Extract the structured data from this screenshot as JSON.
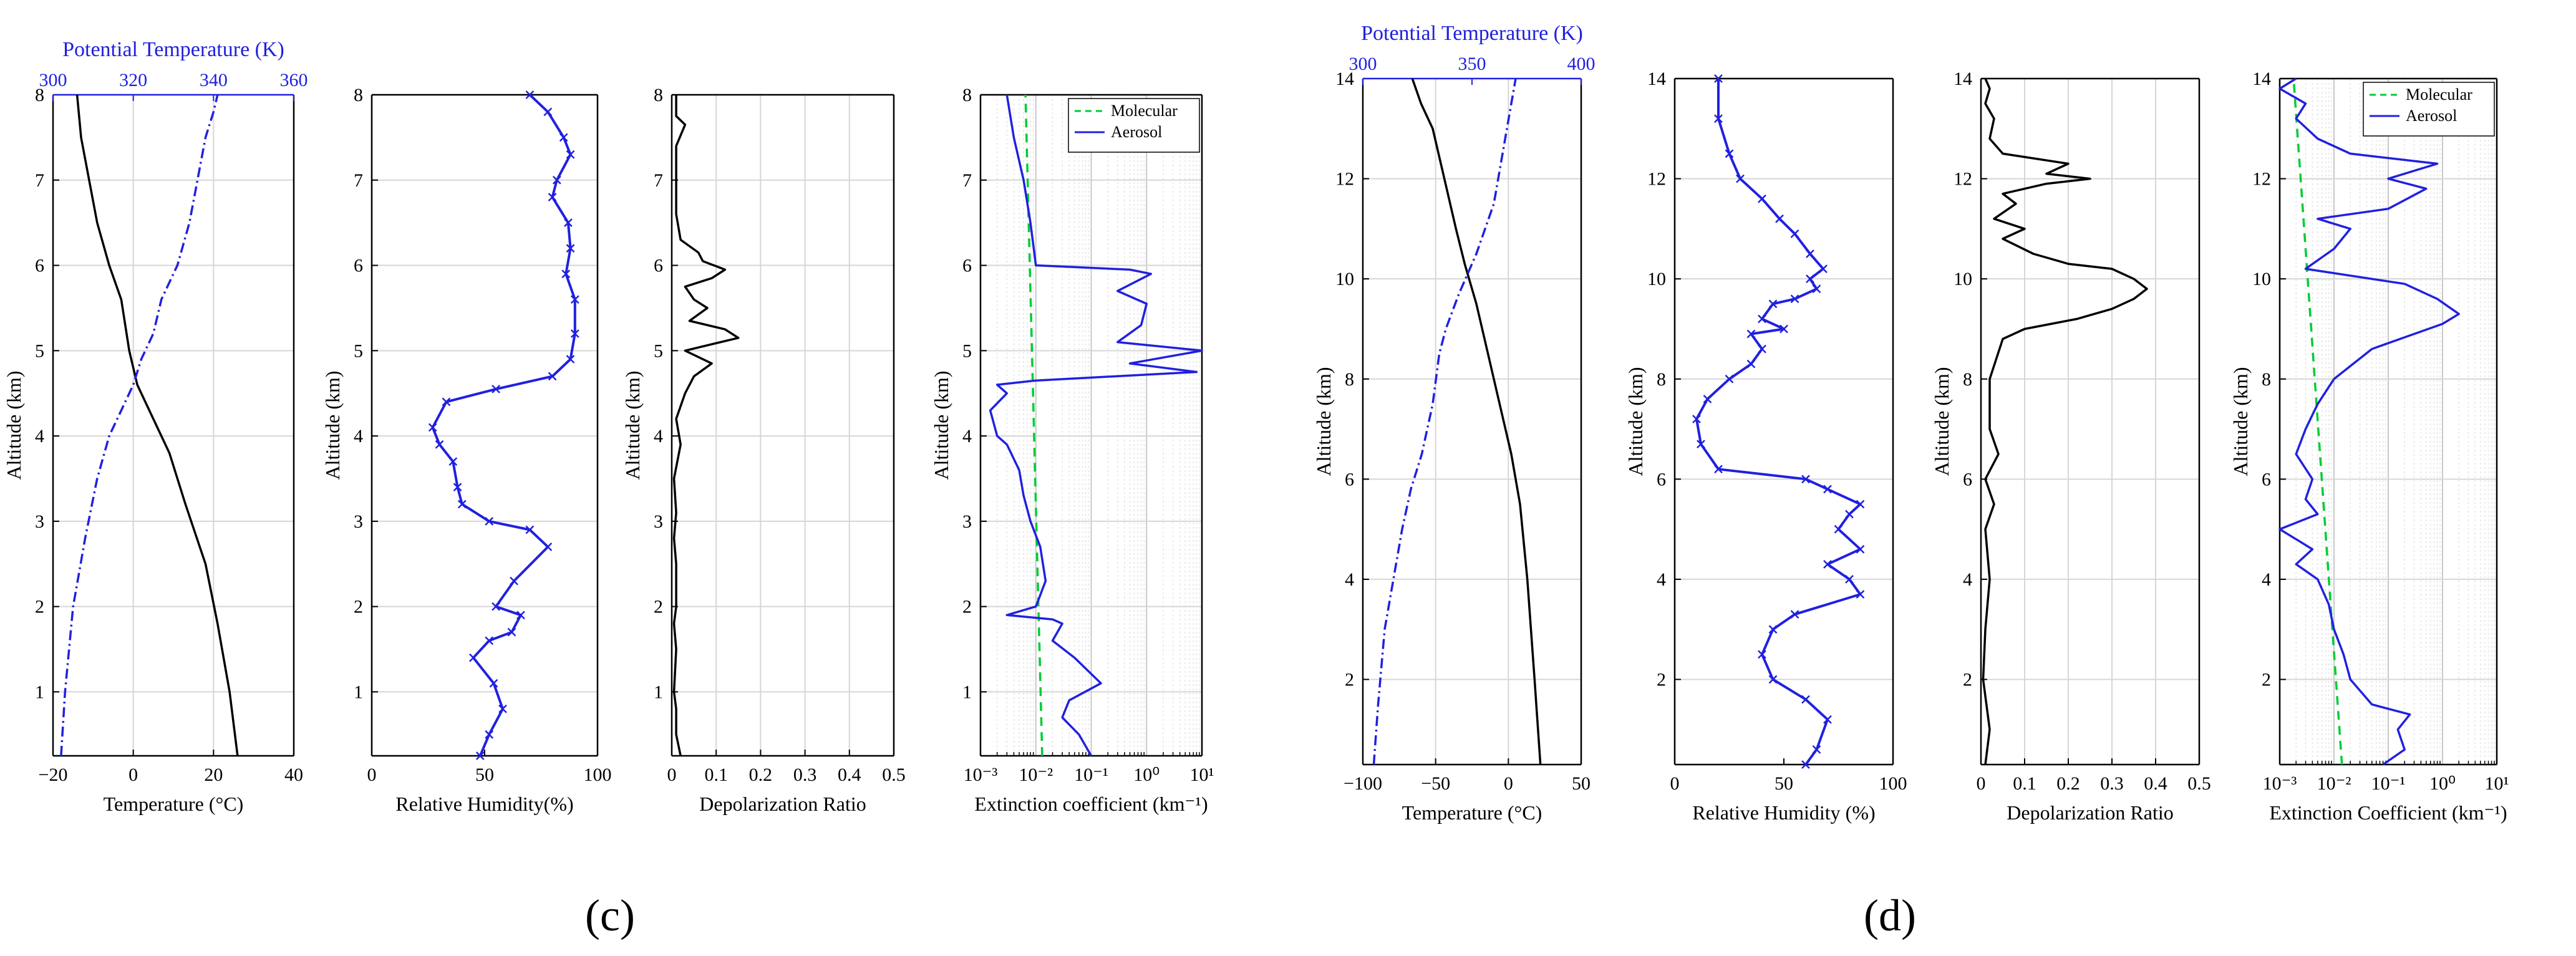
{
  "figure": {
    "panel_labels": [
      "(c)",
      "(d)"
    ]
  },
  "chart_data": [
    {
      "panel": "c",
      "type": "line",
      "title": "",
      "temperature": {
        "xlabel": "Temperature (°C)",
        "ylabel": "Altitude (km)",
        "xlim": [
          -20,
          40
        ],
        "xticks": [
          -20,
          0,
          20,
          40
        ],
        "xtick_labels": [
          "−20",
          "0",
          "20",
          "40"
        ],
        "ylim": [
          0.25,
          8
        ],
        "yticks": [
          1,
          2,
          3,
          4,
          5,
          6,
          7,
          8
        ],
        "top_xlabel": "Potential Temperature (K)",
        "top_xlim": [
          300,
          360
        ],
        "top_xticks": [
          300,
          320,
          340,
          360
        ],
        "series": [
          {
            "name": "Temperature",
            "color": "#000000",
            "style": "solid",
            "axis": "bottom",
            "x": [
              26,
              24,
              21,
              18,
              13,
              9,
              4,
              1,
              -1,
              -2,
              -3,
              -6,
              -9,
              -11,
              -13,
              -14
            ],
            "y": [
              0.25,
              1,
              1.8,
              2.5,
              3.2,
              3.8,
              4.3,
              4.6,
              5.0,
              5.3,
              5.6,
              6.0,
              6.5,
              7.0,
              7.5,
              8.0
            ]
          },
          {
            "name": "Potential Temperature",
            "color": "#2020e0",
            "style": "dashdot",
            "axis": "top",
            "x": [
              302,
              303,
              305,
              308,
              311,
              314,
              317,
              320,
              322,
              325,
              327,
              331,
              334,
              336,
              338,
              340,
              341
            ],
            "y": [
              0.25,
              1,
              2,
              2.8,
              3.5,
              4.0,
              4.3,
              4.6,
              4.9,
              5.2,
              5.6,
              6.0,
              6.5,
              7.0,
              7.5,
              7.8,
              8.0
            ]
          }
        ]
      },
      "humidity": {
        "xlabel": "Relative Humidity(%)",
        "xlim": [
          0,
          100
        ],
        "xticks": [
          0,
          50,
          100
        ],
        "ylim": [
          0.25,
          8
        ],
        "yticks": [
          1,
          2,
          3,
          4,
          5,
          6,
          7,
          8
        ],
        "ylabel": "Altitude (km)",
        "series": [
          {
            "name": "Relative Humidity",
            "color": "#2020e0",
            "marker": "x",
            "x": [
              48,
              52,
              58,
              54,
              45,
              52,
              62,
              66,
              55,
              63,
              78,
              70,
              52,
              40,
              38,
              36,
              30,
              27,
              33,
              55,
              80,
              88,
              90,
              90,
              86,
              88,
              87,
              80,
              82,
              88,
              85,
              78,
              70
            ],
            "y": [
              0.25,
              0.5,
              0.8,
              1.1,
              1.4,
              1.6,
              1.7,
              1.9,
              2.0,
              2.3,
              2.7,
              2.9,
              3.0,
              3.2,
              3.4,
              3.7,
              3.9,
              4.1,
              4.4,
              4.55,
              4.7,
              4.9,
              5.2,
              5.6,
              5.9,
              6.2,
              6.5,
              6.8,
              7.0,
              7.3,
              7.5,
              7.8,
              8.0
            ]
          }
        ]
      },
      "depolarization": {
        "xlabel": "Depolarization Ratio",
        "xlim": [
          0,
          0.5
        ],
        "xticks": [
          0,
          0.1,
          0.2,
          0.3,
          0.4,
          0.5
        ],
        "ylim": [
          0.25,
          8
        ],
        "yticks": [
          1,
          2,
          3,
          4,
          5,
          6,
          7,
          8
        ],
        "ylabel": "Altitude (km)",
        "series": [
          {
            "name": "Depolarization Ratio",
            "color": "#000000",
            "x": [
              0.02,
              0.01,
              0.01,
              0.005,
              0.01,
              0.005,
              0.01,
              0.01,
              0.005,
              0.01,
              0.005,
              0.02,
              0.01,
              0.03,
              0.05,
              0.09,
              0.03,
              0.15,
              0.12,
              0.04,
              0.08,
              0.05,
              0.03,
              0.09,
              0.12,
              0.07,
              0.06,
              0.02,
              0.01,
              0.01,
              0.01,
              0.03,
              0.01,
              0.01
            ],
            "y": [
              0.25,
              0.5,
              0.8,
              1.0,
              1.5,
              1.8,
              2.0,
              2.5,
              2.8,
              3.1,
              3.5,
              3.9,
              4.2,
              4.5,
              4.7,
              4.85,
              5.0,
              5.15,
              5.25,
              5.35,
              5.5,
              5.6,
              5.75,
              5.85,
              5.95,
              6.05,
              6.15,
              6.3,
              6.6,
              7.0,
              7.4,
              7.65,
              7.75,
              8.0
            ]
          }
        ]
      },
      "extinction": {
        "xlabel": "Extinction coefficient (km⁻¹)",
        "xscale": "log",
        "xlim": [
          0.001,
          10
        ],
        "xtick_labels": [
          "10⁻³",
          "10⁻²",
          "10⁻¹",
          "10⁰",
          "10¹"
        ],
        "ylim": [
          0.25,
          8
        ],
        "yticks": [
          1,
          2,
          3,
          4,
          5,
          6,
          7,
          8
        ],
        "ylabel": "Altitude (km)",
        "legend": {
          "position": "top-right",
          "entries": [
            "Molecular",
            "Aerosol"
          ]
        },
        "series": [
          {
            "name": "Molecular",
            "color": "#00cc33",
            "style": "dashed",
            "x": [
              0.013,
              0.0065
            ],
            "y": [
              0.25,
              8.0
            ]
          },
          {
            "name": "Aerosol",
            "color": "#2020e0",
            "style": "solid",
            "x": [
              0.1,
              0.06,
              0.03,
              0.04,
              0.15,
              0.05,
              0.02,
              0.03,
              0.02,
              0.003,
              0.01,
              0.015,
              0.012,
              0.008,
              0.006,
              0.005,
              0.003,
              0.002,
              0.0015,
              0.003,
              0.002,
              0.01,
              8,
              0.5,
              10,
              0.3,
              0.8,
              1.0,
              0.3,
              1.2,
              0.5,
              0.01,
              0.008,
              0.006,
              0.004,
              0.003
            ],
            "y": [
              0.25,
              0.5,
              0.7,
              0.9,
              1.1,
              1.4,
              1.6,
              1.8,
              1.85,
              1.9,
              2.0,
              2.3,
              2.7,
              3.0,
              3.3,
              3.6,
              3.9,
              4.0,
              4.3,
              4.5,
              4.6,
              4.65,
              4.75,
              4.85,
              5.0,
              5.1,
              5.3,
              5.55,
              5.7,
              5.9,
              5.95,
              6.0,
              6.5,
              7.0,
              7.5,
              8.0
            ]
          }
        ]
      }
    },
    {
      "panel": "d",
      "type": "line",
      "title": "",
      "temperature": {
        "xlabel": "Temperature (°C)",
        "ylabel": "Altitude (km)",
        "xlim": [
          -100,
          50
        ],
        "xticks": [
          -100,
          -50,
          0,
          50
        ],
        "xtick_labels": [
          "−100",
          "−50",
          "0",
          "50"
        ],
        "ylim": [
          0.3,
          14
        ],
        "yticks": [
          2,
          4,
          6,
          8,
          10,
          12,
          14
        ],
        "top_xlabel": "Potential Temperature (K)",
        "top_xlim": [
          300,
          400
        ],
        "top_xticks": [
          300,
          350,
          400
        ],
        "series": [
          {
            "name": "Temperature",
            "color": "#000000",
            "style": "solid",
            "axis": "bottom",
            "x": [
              22,
              18,
              13,
              8,
              2,
              -6,
              -14,
              -22,
              -30,
              -36,
              -44,
              -52,
              -60,
              -66
            ],
            "y": [
              0.3,
              2,
              4,
              5.5,
              6.5,
              7.5,
              8.5,
              9.5,
              10.3,
              11,
              12,
              13,
              13.5,
              14
            ]
          },
          {
            "name": "Potential Temperature",
            "color": "#2020e0",
            "style": "dashdot",
            "axis": "top",
            "x": [
              305,
              307,
              310,
              314,
              318,
              322,
              327,
              332,
              335,
              338,
              344,
              352,
              360,
              364,
              368,
              370
            ],
            "y": [
              0.3,
              1.5,
              3,
              4,
              5,
              5.8,
              6.5,
              7.5,
              8.5,
              9.0,
              9.7,
              10.5,
              11.5,
              12.5,
              13.5,
              14
            ]
          }
        ]
      },
      "humidity": {
        "xlabel": "Relative Humidity (%)",
        "xlim": [
          0,
          100
        ],
        "xticks": [
          0,
          50,
          100
        ],
        "ylim": [
          0.3,
          14
        ],
        "yticks": [
          2,
          4,
          6,
          8,
          10,
          12,
          14
        ],
        "ylabel": "Altitude (km)",
        "series": [
          {
            "name": "Relative Humidity",
            "color": "#2020e0",
            "marker": "x",
            "x": [
              60,
              65,
              70,
              60,
              45,
              40,
              45,
              55,
              85,
              80,
              70,
              85,
              75,
              80,
              85,
              70,
              60,
              20,
              12,
              10,
              15,
              25,
              35,
              40,
              35,
              50,
              40,
              45,
              55,
              65,
              62,
              68,
              62,
              55,
              48,
              40,
              30,
              25,
              20,
              20
            ],
            "y": [
              0.3,
              0.6,
              1.2,
              1.6,
              2.0,
              2.5,
              3.0,
              3.3,
              3.7,
              4.0,
              4.3,
              4.6,
              5.0,
              5.3,
              5.5,
              5.8,
              6.0,
              6.2,
              6.7,
              7.2,
              7.6,
              8.0,
              8.3,
              8.6,
              8.9,
              9.0,
              9.2,
              9.5,
              9.6,
              9.8,
              10.0,
              10.2,
              10.5,
              10.9,
              11.2,
              11.6,
              12.0,
              12.5,
              13.2,
              14.0
            ]
          }
        ]
      },
      "depolarization": {
        "xlabel": "Depolarization Ratio",
        "xlim": [
          0,
          0.5
        ],
        "xticks": [
          0,
          0.1,
          0.2,
          0.3,
          0.4,
          0.5
        ],
        "ylim": [
          0.3,
          14
        ],
        "yticks": [
          2,
          4,
          6,
          8,
          10,
          12,
          14
        ],
        "ylabel": "Altitude (km)",
        "series": [
          {
            "name": "Depolarization Ratio",
            "color": "#000000",
            "x": [
              0.01,
              0.02,
              0.005,
              0.01,
              0.02,
              0.01,
              0.03,
              0.01,
              0.04,
              0.02,
              0.02,
              0.05,
              0.1,
              0.22,
              0.3,
              0.35,
              0.38,
              0.35,
              0.3,
              0.2,
              0.12,
              0.05,
              0.1,
              0.03,
              0.08,
              0.05,
              0.15,
              0.25,
              0.15,
              0.2,
              0.05,
              0.02,
              0.03,
              0.01,
              0.02,
              0.01
            ],
            "y": [
              0.3,
              1.0,
              2.0,
              3.0,
              4.0,
              5.0,
              5.5,
              6.0,
              6.5,
              7.0,
              8.0,
              8.8,
              9.0,
              9.2,
              9.4,
              9.6,
              9.8,
              10.0,
              10.2,
              10.3,
              10.5,
              10.8,
              11.0,
              11.2,
              11.5,
              11.7,
              11.9,
              12.0,
              12.1,
              12.3,
              12.5,
              12.8,
              13.2,
              13.5,
              13.8,
              14.0
            ]
          }
        ]
      },
      "extinction": {
        "xlabel": "Extinction Coefficient (km⁻¹)",
        "xscale": "log",
        "xlim": [
          0.001,
          10
        ],
        "xtick_labels": [
          "10⁻³",
          "10⁻²",
          "10⁻¹",
          "10⁰",
          "10¹"
        ],
        "ylim": [
          0.3,
          14
        ],
        "yticks": [
          2,
          4,
          6,
          8,
          10,
          12,
          14
        ],
        "ylabel": "Altitude (km)",
        "legend": {
          "position": "top-right",
          "entries": [
            "Molecular",
            "Aerosol"
          ]
        },
        "series": [
          {
            "name": "Molecular",
            "color": "#00cc33",
            "style": "dashed",
            "x": [
              0.014,
              0.0018
            ],
            "y": [
              0.3,
              14.0
            ]
          },
          {
            "name": "Aerosol",
            "color": "#2020e0",
            "style": "solid",
            "x": [
              0.08,
              0.2,
              0.15,
              0.25,
              0.05,
              0.02,
              0.015,
              0.01,
              0.008,
              0.005,
              0.002,
              0.004,
              0.001,
              0.005,
              0.003,
              0.004,
              0.002,
              0.003,
              0.005,
              0.01,
              0.05,
              0.3,
              1.0,
              2.0,
              0.8,
              0.2,
              0.003,
              0.01,
              0.02,
              0.005,
              0.1,
              0.5,
              0.1,
              0.8,
              0.02,
              0.005,
              0.002,
              0.003,
              0.001,
              0.002
            ],
            "y": [
              0.3,
              0.6,
              1.0,
              1.3,
              1.5,
              2.0,
              2.5,
              3.0,
              3.5,
              4.0,
              4.3,
              4.6,
              5.0,
              5.3,
              5.6,
              6.0,
              6.5,
              7.0,
              7.5,
              8.0,
              8.6,
              8.9,
              9.1,
              9.3,
              9.6,
              9.9,
              10.2,
              10.6,
              11.0,
              11.2,
              11.4,
              11.8,
              12.0,
              12.3,
              12.5,
              12.8,
              13.2,
              13.5,
              13.8,
              14.0
            ]
          }
        ]
      }
    }
  ]
}
